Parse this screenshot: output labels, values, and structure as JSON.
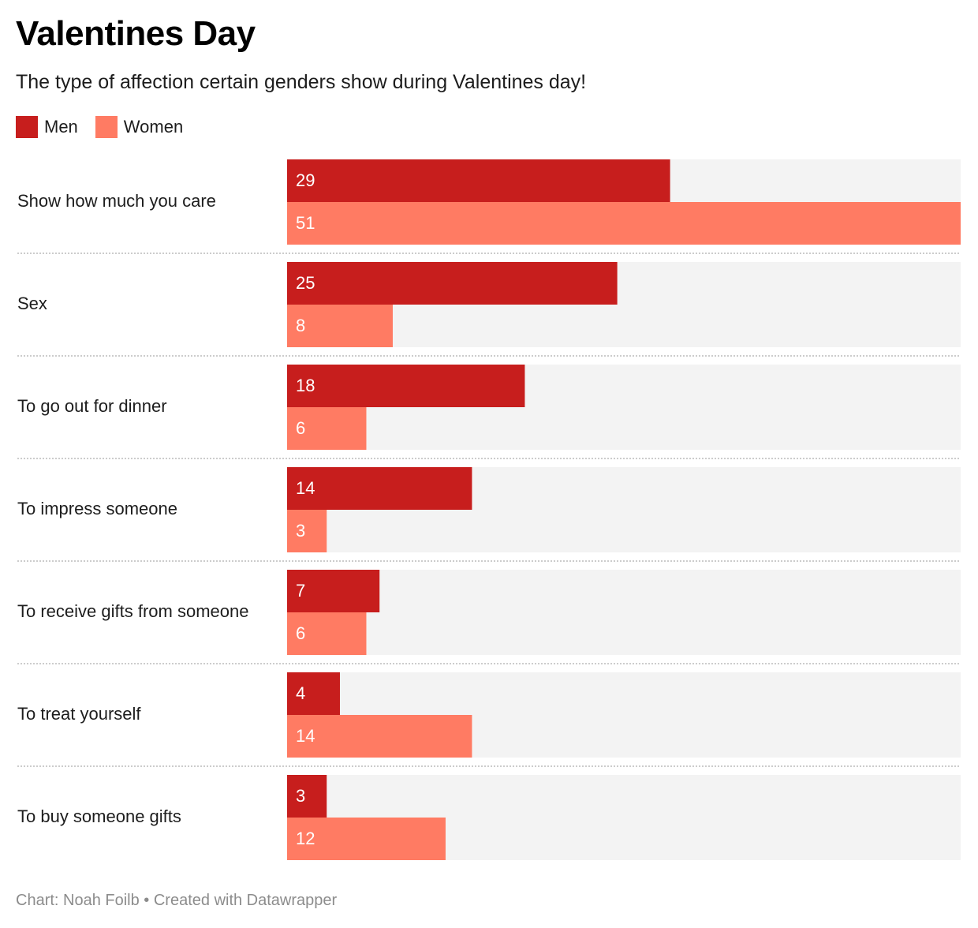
{
  "header": {
    "title": "Valentines Day",
    "subtitle": "The type of affection certain genders show during Valentines day!"
  },
  "footer": {
    "credit": "Chart: Noah Foilb • Created with Datawrapper"
  },
  "colors": {
    "men": "#c71e1d",
    "women": "#ff7b63",
    "track": "#f3f3f3",
    "label_text": "#ffffff",
    "separator": "#cccccc"
  },
  "chart_data": {
    "type": "bar",
    "orientation": "horizontal",
    "grouped": true,
    "categories": [
      "Show how much you care",
      "Sex",
      "To go out for dinner",
      "To impress someone",
      "To receive gifts from someone",
      "To treat yourself",
      "To buy someone gifts"
    ],
    "series": [
      {
        "name": "Men",
        "values": [
          29,
          25,
          18,
          14,
          7,
          4,
          3
        ]
      },
      {
        "name": "Women",
        "values": [
          51,
          8,
          6,
          3,
          6,
          14,
          12
        ]
      }
    ],
    "xlim": [
      0,
      51
    ],
    "legend": "top-left",
    "grid": false,
    "data_labels": "inside-left"
  }
}
